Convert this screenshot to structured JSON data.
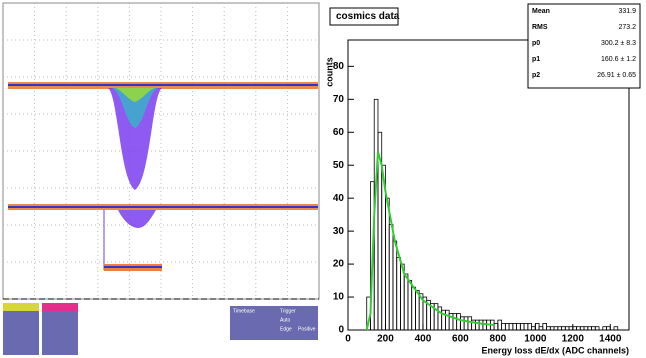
{
  "scope": {
    "timebase_label": "Timebase",
    "trigger_label": "Trigger",
    "trigger_mode": "Auto",
    "trigger_type": "Edge",
    "trigger_slope": "Positive"
  },
  "chart_data": {
    "type": "histogram",
    "title": "cosmics data",
    "xlabel": "Energy loss dE/dx (ADC channels)",
    "ylabel": "counts",
    "bins": [
      0,
      20,
      40,
      60,
      80,
      100,
      120,
      140,
      160,
      180,
      200,
      220,
      240,
      260,
      280,
      300,
      320,
      340,
      360,
      380,
      400,
      420,
      440,
      460,
      480,
      500,
      520,
      540,
      560,
      580,
      600,
      620,
      640,
      660,
      680,
      700,
      720,
      740,
      760,
      780,
      800,
      820,
      840,
      860,
      880,
      900,
      920,
      940,
      960,
      980,
      1000,
      1020,
      1040,
      1060,
      1080,
      1100,
      1120,
      1140,
      1160,
      1180,
      1200,
      1220,
      1240,
      1260,
      1280,
      1300,
      1320,
      1340,
      1360,
      1380,
      1400,
      1420,
      1440,
      1460,
      1480,
      1500
    ],
    "values": [
      0,
      0,
      0,
      0,
      0,
      10,
      45,
      70,
      60,
      50,
      40,
      32,
      27,
      22,
      20,
      17,
      15,
      13,
      12,
      11,
      10,
      9,
      8,
      8,
      7,
      6,
      6,
      5,
      5,
      5,
      4,
      4,
      4,
      3,
      3,
      3,
      3,
      3,
      3,
      2,
      3,
      2,
      2,
      2,
      2,
      2,
      2,
      2,
      2,
      1,
      2,
      1,
      2,
      1,
      1,
      1,
      1,
      1,
      1,
      1,
      1,
      1,
      1,
      1,
      1,
      1,
      1,
      0,
      1,
      1,
      0,
      1,
      0,
      0,
      0
    ],
    "color": "#000000",
    "fit": {
      "x": [
        100,
        120,
        140,
        160,
        180,
        200,
        250,
        300,
        400,
        500,
        600,
        700,
        780
      ],
      "values": [
        0,
        5,
        35,
        54,
        50,
        42,
        27,
        17,
        9,
        5,
        3,
        2,
        1.5
      ],
      "color": "#33cc33"
    },
    "xlim": [
      0,
      1500
    ],
    "ylim": [
      0,
      88
    ],
    "xticks": [
      0,
      200,
      400,
      600,
      800,
      1000,
      1200,
      1400
    ],
    "yticks": [
      0,
      10,
      20,
      30,
      40,
      50,
      60,
      70,
      80
    ],
    "stats": [
      [
        "Mean",
        "331.9"
      ],
      [
        "RMS",
        "273.2"
      ],
      [
        "p0",
        "300.2 ± 8.3"
      ],
      [
        "p1",
        "160.6 ± 1.2"
      ],
      [
        "p2",
        "26.91 ± 0.65"
      ]
    ]
  }
}
